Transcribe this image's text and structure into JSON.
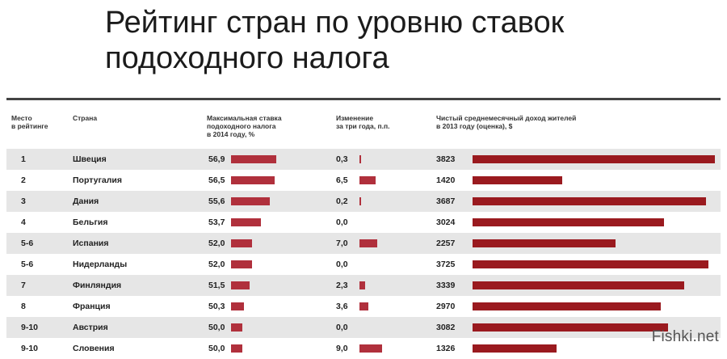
{
  "title_line1": "Рейтинг стран по уровню ставок",
  "title_line2": "подоходного налога",
  "headers": {
    "rank": [
      "Место",
      "в рейтинге"
    ],
    "country": "Страна",
    "rate": [
      "Максимальная ставка",
      "подоходного налога",
      "в 2014 году, %"
    ],
    "change": [
      "Изменение",
      "за три года, п.п."
    ],
    "income": [
      "Чистый среднемесячный доход жителей",
      "в 2013 году (оценка), $"
    ]
  },
  "colors": {
    "bar": "#b0303c",
    "income_bar": "#9a1a1f",
    "rule": "#444444",
    "row_alt": "#e6e6e6"
  },
  "watermark": "Fishki.net",
  "chart_data": {
    "type": "table",
    "columns": [
      "Место в рейтинге",
      "Страна",
      "Максимальная ставка подоходного налога в 2014 году, %",
      "Изменение за три года, п.п.",
      "Чистый среднемесячный доход жителей в 2013 году (оценка), $"
    ],
    "rows": [
      {
        "rank": "1",
        "country": "Швеция",
        "rate": "56,9",
        "change": "0,3",
        "income": "3823"
      },
      {
        "rank": "2",
        "country": "Португалия",
        "rate": "56,5",
        "change": "6,5",
        "income": "1420"
      },
      {
        "rank": "3",
        "country": "Дания",
        "rate": "55,6",
        "change": "0,2",
        "income": "3687"
      },
      {
        "rank": "4",
        "country": "Бельгия",
        "rate": "53,7",
        "change": "0,0",
        "income": "3024"
      },
      {
        "rank": "5-6",
        "country": "Испания",
        "rate": "52,0",
        "change": "7,0",
        "income": "2257"
      },
      {
        "rank": "5-6",
        "country": "Нидерланды",
        "rate": "52,0",
        "change": "0,0",
        "income": "3725"
      },
      {
        "rank": "7",
        "country": "Финляндия",
        "rate": "51,5",
        "change": "2,3",
        "income": "3339"
      },
      {
        "rank": "8",
        "country": "Франция",
        "rate": "50,3",
        "change": "3,6",
        "income": "2970"
      },
      {
        "rank": "9-10",
        "country": "Австрия",
        "rate": "50,0",
        "change": "0,0",
        "income": "3082"
      },
      {
        "rank": "9-10",
        "country": "Словения",
        "rate": "50,0",
        "change": "9,0",
        "income": "1326"
      }
    ]
  }
}
